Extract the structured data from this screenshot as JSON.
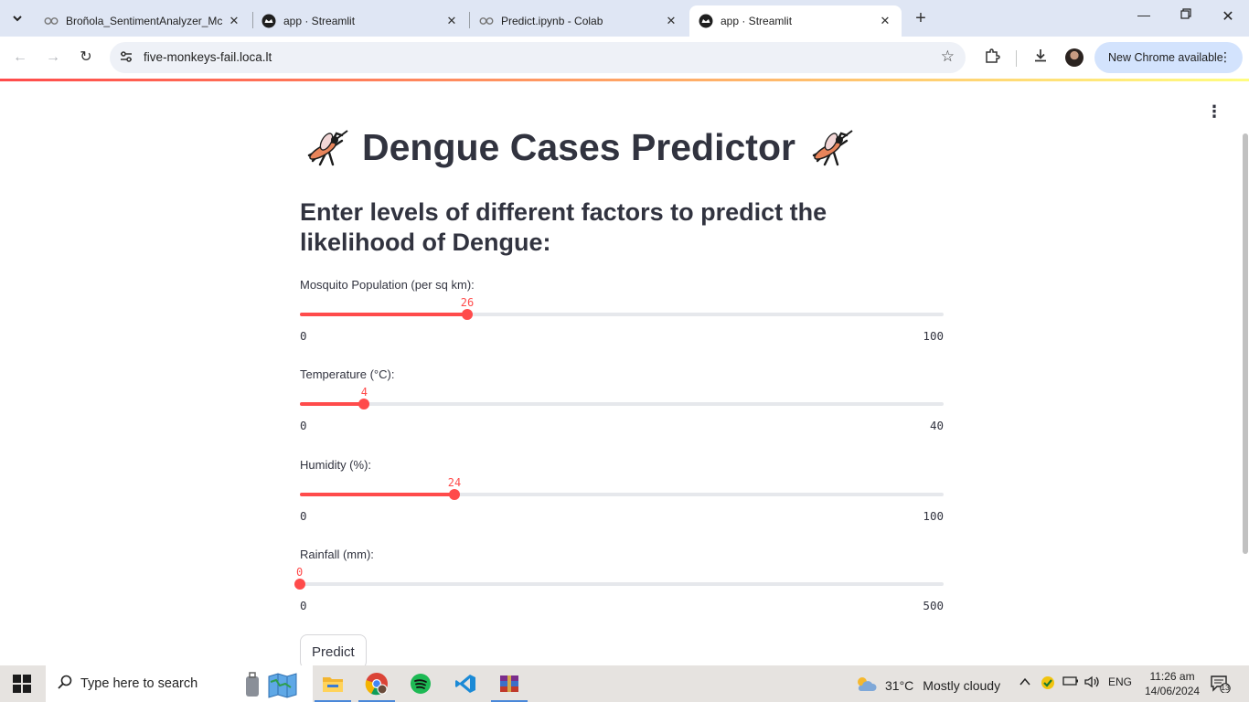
{
  "browser": {
    "tabs": [
      {
        "title": "Broñola_SentimentAnalyzer_Mc",
        "icon": "colab-icon",
        "active": false
      },
      {
        "title": "app · Streamlit",
        "icon": "streamlit-icon",
        "active": false
      },
      {
        "title": "Predict.ipynb - Colab",
        "icon": "colab-icon",
        "active": false
      },
      {
        "title": "app · Streamlit",
        "icon": "streamlit-icon",
        "active": true
      }
    ],
    "url": "five-monkeys-fail.loca.lt",
    "update_label": "New Chrome available"
  },
  "app": {
    "title": "Dengue Cases Predictor",
    "title_icon": "mosquito-icon",
    "subtitle": "Enter levels of different factors to predict the likelihood of Dengue:",
    "sliders": [
      {
        "label": "Mosquito Population (per sq km):",
        "value": "26",
        "min": "0",
        "max": "100",
        "fraction": 0.26
      },
      {
        "label": "Temperature (°C):",
        "value": "4",
        "min": "0",
        "max": "40",
        "fraction": 0.1
      },
      {
        "label": "Humidity (%):",
        "value": "24",
        "min": "0",
        "max": "100",
        "fraction": 0.24
      },
      {
        "label": "Rainfall (mm):",
        "value": "0",
        "min": "0",
        "max": "500",
        "fraction": 0.0
      }
    ],
    "predict_label": "Predict",
    "accent_color": "#ff4b4b"
  },
  "taskbar": {
    "search_placeholder": "Type here to search",
    "weather": {
      "temp": "31°C",
      "condition": "Mostly cloudy"
    },
    "language": "ENG",
    "time": "11:26 am",
    "date": "14/06/2024",
    "notification_count": "13"
  }
}
